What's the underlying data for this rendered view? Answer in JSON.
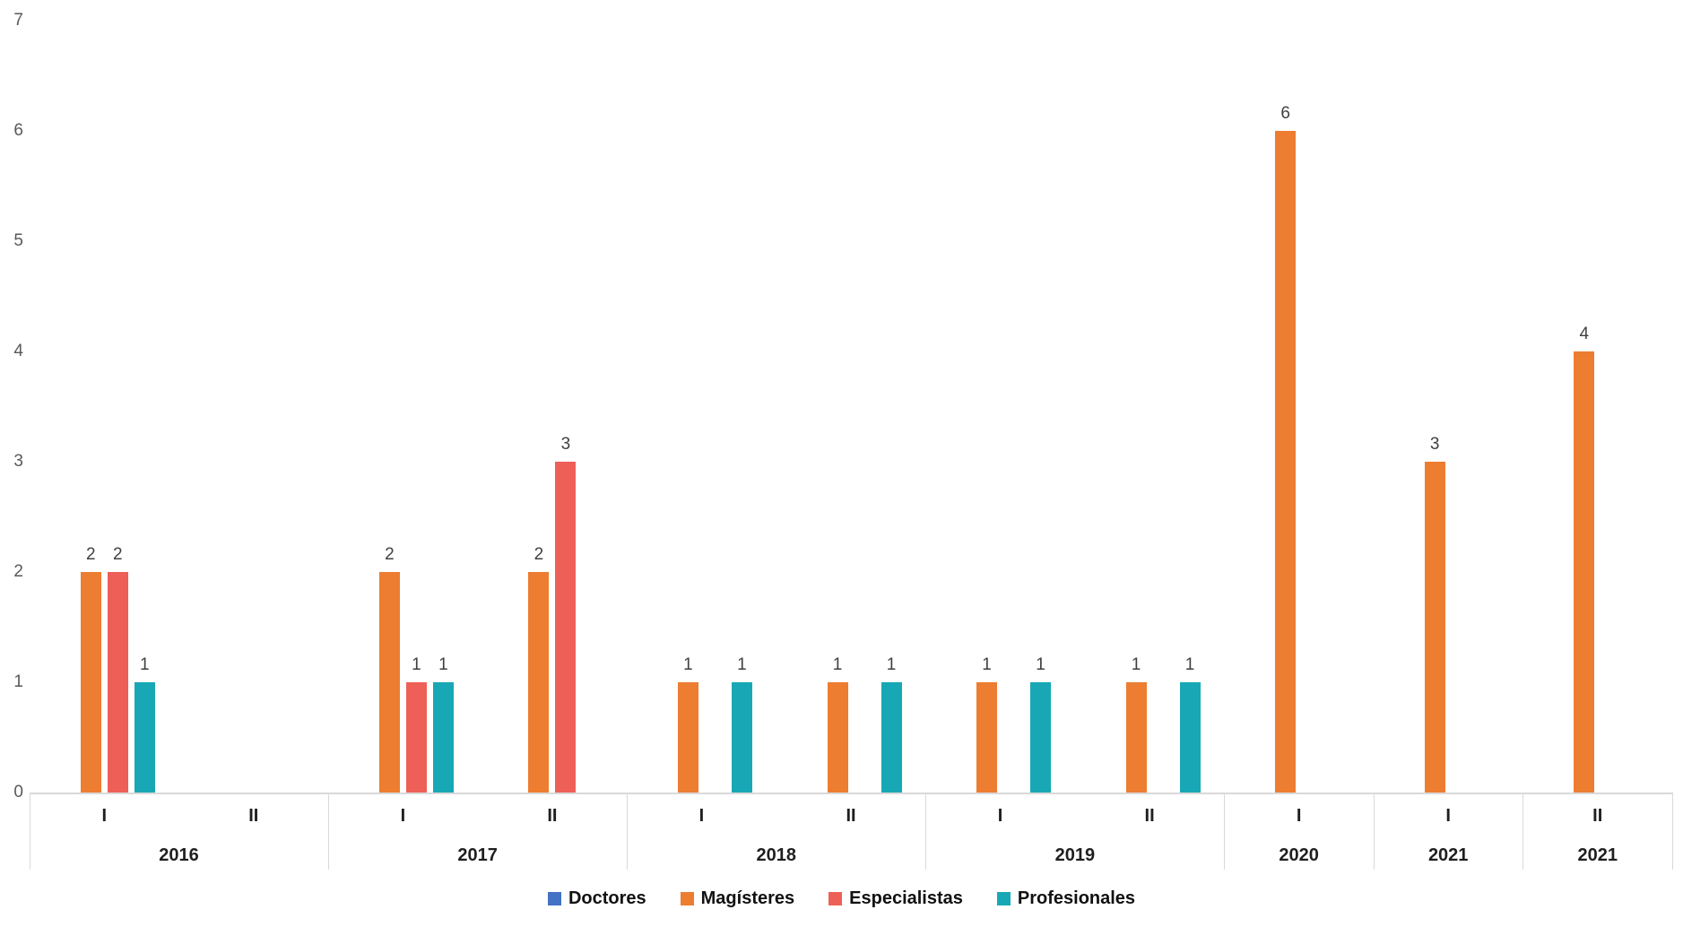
{
  "chart_data": {
    "type": "bar",
    "title": "",
    "categories": [
      "2016 I",
      "2016 II",
      "2017 I",
      "2017 II",
      "2018 I",
      "2018 II",
      "2019 I",
      "2019 II",
      "2020 I",
      "2021 I",
      "2021 II"
    ],
    "periods": [
      "I",
      "II",
      "I",
      "II",
      "I",
      "II",
      "I",
      "II",
      "I",
      "I",
      "II"
    ],
    "year_groups": [
      {
        "label": "2016",
        "span": 2
      },
      {
        "label": "2017",
        "span": 2
      },
      {
        "label": "2018",
        "span": 2
      },
      {
        "label": "2019",
        "span": 2
      },
      {
        "label": "2020",
        "span": 1
      },
      {
        "label": "2021",
        "span": 1
      },
      {
        "label": "2021",
        "span": 1
      }
    ],
    "series": [
      {
        "name": "Doctores",
        "color": "#4472C4",
        "values": [
          0,
          0,
          0,
          0,
          0,
          0,
          0,
          0,
          0,
          0,
          0
        ]
      },
      {
        "name": "Magísteres",
        "color": "#ED7D31",
        "values": [
          2,
          0,
          2,
          2,
          1,
          1,
          1,
          1,
          6,
          3,
          4
        ]
      },
      {
        "name": "Especialistas",
        "color": "#EE6057",
        "values": [
          2,
          0,
          1,
          3,
          0,
          0,
          0,
          0,
          0,
          0,
          0
        ]
      },
      {
        "name": "Profesionales",
        "color": "#18A8B5",
        "values": [
          1,
          0,
          1,
          0,
          1,
          1,
          1,
          1,
          0,
          0,
          0
        ]
      }
    ],
    "ylim": [
      0,
      7
    ],
    "yticks": [
      0,
      1,
      2,
      3,
      4,
      5,
      6,
      7
    ],
    "grid": false,
    "legend_position": "bottom",
    "value_labels_shown_for_nonzero_bars": true,
    "axis_line_color": "#D9D9D9",
    "tick_label_color": "#595959",
    "value_label_color": "#404040",
    "category_label_color": "#1F1F1F"
  }
}
